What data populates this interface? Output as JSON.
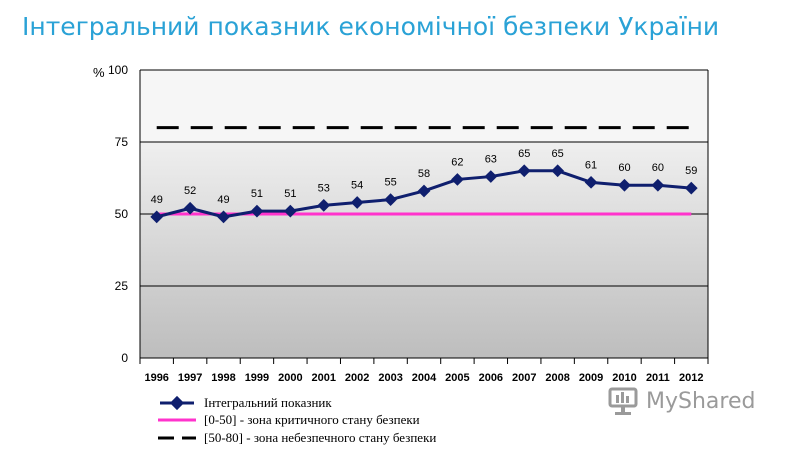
{
  "title": "Інтегральний показник економічної безпеки України",
  "watermark": {
    "text": "MyShared",
    "icon": "myshared-logo-icon"
  },
  "colors": {
    "series": "#0f1f6e",
    "critical": "#ff33cc",
    "danger": "#000000",
    "title": "#2aa2d6"
  },
  "chart_data": {
    "type": "line",
    "ylabel": "%",
    "ylim": [
      0,
      100
    ],
    "yticks": [
      0,
      25,
      50,
      75,
      100
    ],
    "x": [
      "1996",
      "1997",
      "1998",
      "1999",
      "2000",
      "2001",
      "2002",
      "2003",
      "2004",
      "2005",
      "2006",
      "2007",
      "2008",
      "2009",
      "2010",
      "2011",
      "2012"
    ],
    "series": [
      {
        "name": "Інтегральний показник",
        "values": [
          49,
          52,
          49,
          51,
          51,
          53,
          54,
          55,
          58,
          62,
          63,
          65,
          65,
          61,
          60,
          60,
          59
        ]
      }
    ],
    "reference_lines": [
      {
        "name": "[0-50] - зона критичного стану безпеки",
        "value": 50,
        "style": "solid"
      },
      {
        "name": "[50-80] - зона небезпечного стану безпеки",
        "value": 80,
        "style": "dashed"
      }
    ],
    "grid": true,
    "legend": "bottom"
  }
}
